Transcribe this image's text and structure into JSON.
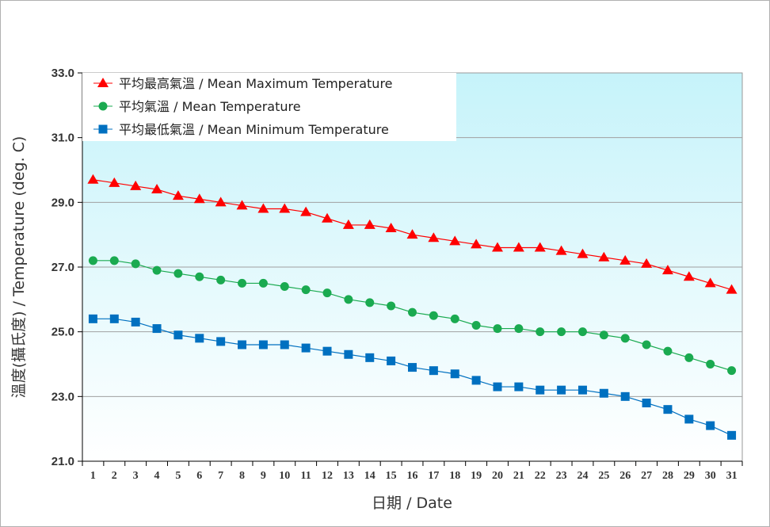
{
  "chart_data": {
    "type": "line",
    "title": "",
    "xlabel": "日期 / Date",
    "ylabel": "溫度(攝氏度) / Temperature (deg. C)",
    "ylim": [
      21.0,
      33.0
    ],
    "yticks": [
      "21.0",
      "23.0",
      "25.0",
      "27.0",
      "29.0",
      "31.0",
      "33.0"
    ],
    "grid": true,
    "legend_position": "top-left",
    "x": [
      1,
      2,
      3,
      4,
      5,
      6,
      7,
      8,
      9,
      10,
      11,
      12,
      13,
      14,
      15,
      16,
      17,
      18,
      19,
      20,
      21,
      22,
      23,
      24,
      25,
      26,
      27,
      28,
      29,
      30,
      31
    ],
    "series": [
      {
        "name": "平均最高氣溫 / Mean Maximum Temperature",
        "color": "#ff0000",
        "marker": "triangle",
        "values": [
          29.7,
          29.6,
          29.5,
          29.4,
          29.2,
          29.1,
          29.0,
          28.9,
          28.8,
          28.8,
          28.7,
          28.5,
          28.3,
          28.3,
          28.2,
          28.0,
          27.9,
          27.8,
          27.7,
          27.6,
          27.6,
          27.6,
          27.5,
          27.4,
          27.3,
          27.2,
          27.1,
          26.9,
          26.7,
          26.5,
          26.3
        ]
      },
      {
        "name": "平均氣溫 / Mean Temperature",
        "color": "#1aaa50",
        "marker": "circle",
        "values": [
          27.2,
          27.2,
          27.1,
          26.9,
          26.8,
          26.7,
          26.6,
          26.5,
          26.5,
          26.4,
          26.3,
          26.2,
          26.0,
          25.9,
          25.8,
          25.6,
          25.5,
          25.4,
          25.2,
          25.1,
          25.1,
          25.0,
          25.0,
          25.0,
          24.9,
          24.8,
          24.6,
          24.4,
          24.2,
          24.0,
          23.8
        ]
      },
      {
        "name": "平均最低氣溫 / Mean Minimum Temperature",
        "color": "#0070c0",
        "marker": "square",
        "values": [
          25.4,
          25.4,
          25.3,
          25.1,
          24.9,
          24.8,
          24.7,
          24.6,
          24.6,
          24.6,
          24.5,
          24.4,
          24.3,
          24.2,
          24.1,
          23.9,
          23.8,
          23.7,
          23.5,
          23.3,
          23.3,
          23.2,
          23.2,
          23.2,
          23.1,
          23.0,
          22.8,
          22.6,
          22.3,
          22.1,
          21.8
        ]
      }
    ],
    "background_gradient": [
      "#c6f3fa",
      "#ffffff"
    ]
  }
}
